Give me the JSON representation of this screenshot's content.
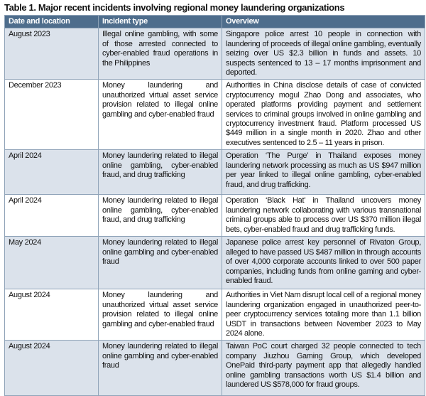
{
  "title": "Table 1. Major recent incidents involving regional money laundering organizations",
  "headers": [
    "Date and location",
    "Incident type",
    "Overview"
  ],
  "rows": [
    {
      "date": "August 2023",
      "type": "Illegal online gambling, with some of those arrested connected to cyber-enabled fraud operations in the Philippines",
      "overview": "Singapore police arrest 10 people in connection with laundering of proceeds of illegal online gambling, eventually seizing over US $2.3 billion in funds and assets. 10 suspects sentenced to 13 – 17 months imprisonment and deported."
    },
    {
      "date": "December 2023",
      "type": "Money laundering and unauthorized virtual asset service provision related to illegal online gambling and cyber-enabled fraud",
      "overview": "Authorities in China disclose details of case of convicted cryptocurrency mogul Zhao Dong and associates, who operated platforms providing payment and settlement services to criminal groups involved in online gambling and cryptocurrency investment fraud. Platform processed US $449 million in a single month in 2020. Zhao and other executives sentenced to 2.5 – 11 years in prison."
    },
    {
      "date": "April 2024",
      "type": "Money laundering related to illegal online gambling, cyber-enabled fraud, and drug trafficking",
      "overview": "Operation ‘The Purge’ in Thailand exposes money laundering network processing as much as US $947 million per year linked to illegal online gambling, cyber-enabled fraud, and drug trafficking."
    },
    {
      "date": "April 2024",
      "type": "Money laundering related to illegal online gambling, cyber-enabled fraud, and drug trafficking",
      "overview": "Operation ‘Black Hat’ in Thailand uncovers money laundering network collaborating with various transnational criminal groups able to process over US $370 million illegal bets, cyber-enabled fraud and drug trafficking funds."
    },
    {
      "date": "May 2024",
      "type": "Money laundering related to illegal online gambling and cyber-enabled fraud",
      "overview": "Japanese police arrest key personnel of Rivaton Group, alleged to have passed US $487 million in through accounts of over 4,000 corporate accounts linked to over 500 paper companies, including funds from online gaming and cyber-enabled fraud."
    },
    {
      "date": "August 2024",
      "type": "Money laundering and unauthorized virtual asset service provision related to illegal online gambling and cyber-enabled fraud",
      "overview": "Authorities in Viet Nam disrupt local cell of a regional money laundering organization engaged in unauthorized peer-to-peer cryptocurrency services totaling more than 1.1 billion USDT in transactions between November 2023 to May 2024 alone."
    },
    {
      "date": "August 2024",
      "type": "Money laundering related to illegal online gambling and cyber-enabled fraud",
      "overview": "Taiwan PoC court charged 32 people connected to tech company Jiuzhou Gaming Group, which developed OnePaid third-party payment app that allegedly handled online gambling transactions worth US $1.4 billion and laundered US $578,000 for fraud groups."
    }
  ],
  "colors": {
    "header_bg": "#4e6d8c",
    "shaded_row": "#dbe2eb",
    "border": "#8fa3b8"
  }
}
